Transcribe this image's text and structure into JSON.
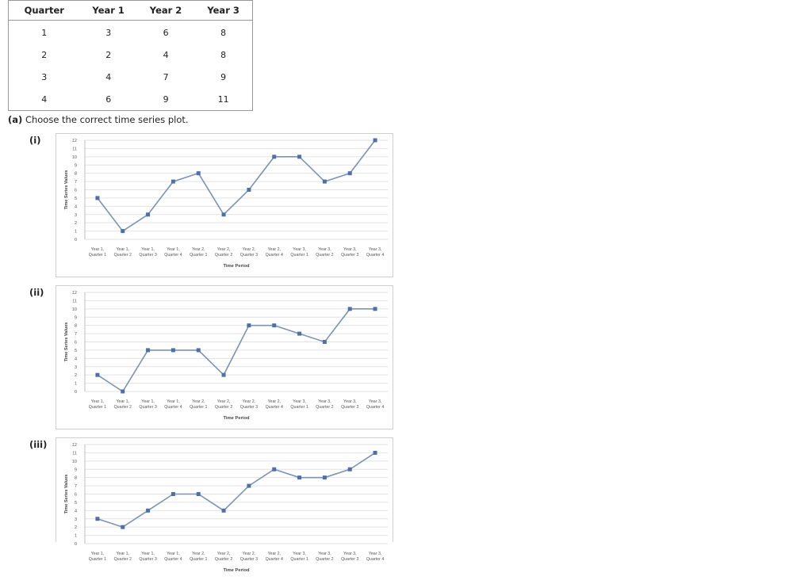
{
  "table": {
    "headers": [
      "Quarter",
      "Year 1",
      "Year 2",
      "Year 3"
    ],
    "rows": [
      [
        "1",
        "3",
        "6",
        "8"
      ],
      [
        "2",
        "2",
        "4",
        "8"
      ],
      [
        "3",
        "4",
        "7",
        "9"
      ],
      [
        "4",
        "6",
        "9",
        "11"
      ]
    ]
  },
  "question": {
    "part": "(a)",
    "text": "Choose the correct time series plot."
  },
  "options": [
    "(i)",
    "(ii)",
    "(iii)"
  ],
  "chart_data": [
    {
      "type": "line",
      "categories": [
        [
          "Year 1,",
          "Quarter 1"
        ],
        [
          "Year 1,",
          "Quarter 2"
        ],
        [
          "Year 1,",
          "Quarter 3"
        ],
        [
          "Year 1,",
          "Quarter 4"
        ],
        [
          "Year 2,",
          "Quarter 1"
        ],
        [
          "Year 2,",
          "Quarter 2"
        ],
        [
          "Year 2,",
          "Quarter 3"
        ],
        [
          "Year 2,",
          "Quarter 4"
        ],
        [
          "Year 3,",
          "Quarter 1"
        ],
        [
          "Year 3,",
          "Quarter 2"
        ],
        [
          "Year 3,",
          "Quarter 3"
        ],
        [
          "Year 3,",
          "Quarter 4"
        ]
      ],
      "values": [
        5,
        1,
        3,
        7,
        8,
        3,
        6,
        10,
        10,
        7,
        8,
        12
      ],
      "xlabel": "Time Period",
      "ylabel": "Time Series Values",
      "ylim": [
        0,
        12
      ],
      "yticks": [
        "0",
        "1",
        "2",
        "3",
        "4",
        "5",
        "6",
        "7",
        "8",
        "9",
        "10",
        "11",
        "12"
      ],
      "grid": true,
      "color": "#7b93b5",
      "marker_color": "#4f6fa8"
    },
    {
      "type": "line",
      "categories": [
        [
          "Year 1,",
          "Quarter 1"
        ],
        [
          "Year 1,",
          "Quarter 2"
        ],
        [
          "Year 1,",
          "Quarter 3"
        ],
        [
          "Year 1,",
          "Quarter 4"
        ],
        [
          "Year 2,",
          "Quarter 1"
        ],
        [
          "Year 2,",
          "Quarter 2"
        ],
        [
          "Year 2,",
          "Quarter 3"
        ],
        [
          "Year 2,",
          "Quarter 4"
        ],
        [
          "Year 3,",
          "Quarter 1"
        ],
        [
          "Year 3,",
          "Quarter 2"
        ],
        [
          "Year 3,",
          "Quarter 3"
        ],
        [
          "Year 3,",
          "Quarter 4"
        ]
      ],
      "values": [
        2,
        0,
        5,
        5,
        5,
        2,
        8,
        8,
        7,
        6,
        10,
        10
      ],
      "xlabel": "Time Period",
      "ylabel": "Time Series Values",
      "ylim": [
        0,
        12
      ],
      "yticks": [
        "0",
        "1",
        "2",
        "3",
        "4",
        "5",
        "6",
        "7",
        "8",
        "9",
        "10",
        "11",
        "12"
      ],
      "grid": true,
      "color": "#7b93b5",
      "marker_color": "#4f6fa8"
    },
    {
      "type": "line",
      "categories": [
        [
          "Year 1,",
          "Quarter 1"
        ],
        [
          "Year 1,",
          "Quarter 2"
        ],
        [
          "Year 1,",
          "Quarter 3"
        ],
        [
          "Year 1,",
          "Quarter 4"
        ],
        [
          "Year 2,",
          "Quarter 1"
        ],
        [
          "Year 2,",
          "Quarter 2"
        ],
        [
          "Year 2,",
          "Quarter 3"
        ],
        [
          "Year 2,",
          "Quarter 4"
        ],
        [
          "Year 3,",
          "Quarter 1"
        ],
        [
          "Year 3,",
          "Quarter 2"
        ],
        [
          "Year 3,",
          "Quarter 3"
        ],
        [
          "Year 3,",
          "Quarter 4"
        ]
      ],
      "values": [
        3,
        2,
        4,
        6,
        6,
        4,
        7,
        9,
        8,
        8,
        9,
        11
      ],
      "xlabel": "Time Period",
      "ylabel": "Time Series Values",
      "ylim": [
        0,
        12
      ],
      "yticks": [
        "0",
        "1",
        "2",
        "3",
        "4",
        "5",
        "6",
        "7",
        "8",
        "9",
        "10",
        "11",
        "12"
      ],
      "grid": true,
      "color": "#7b93b5",
      "marker_color": "#4f6fa8"
    }
  ]
}
